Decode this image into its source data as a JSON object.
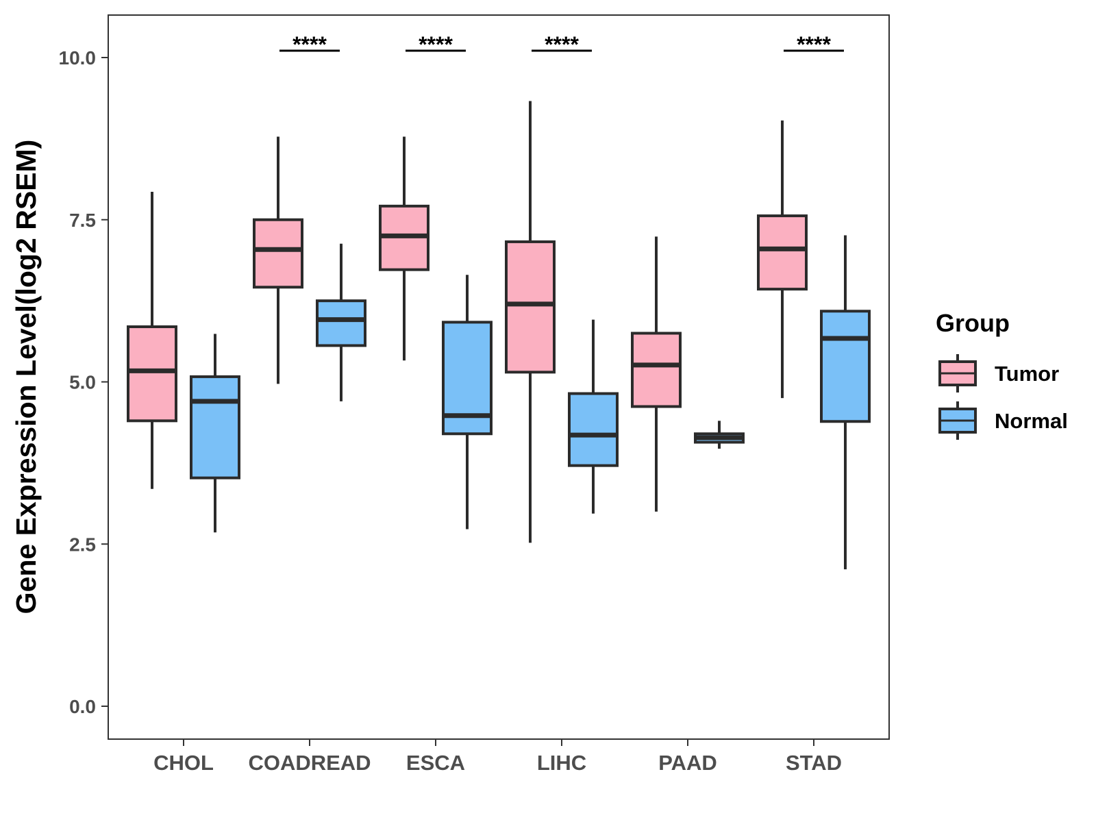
{
  "chart_data": {
    "type": "boxplot",
    "title": "",
    "xlabel": "",
    "ylabel": "Gene Expression Level(log2 RSEM)",
    "ylim": [
      -0.5,
      10.65
    ],
    "yticks": [
      0.0,
      2.5,
      5.0,
      7.5,
      10.0
    ],
    "ytick_labels": [
      "0.0",
      "2.5",
      "5.0",
      "7.5",
      "10.0"
    ],
    "categories": [
      "CHOL",
      "COADREAD",
      "ESCA",
      "LIHC",
      "PAAD",
      "STAD"
    ],
    "legend": {
      "title": "Group",
      "position": "right",
      "entries": [
        "Tumor",
        "Normal"
      ]
    },
    "colors": {
      "Tumor": "#fbb0c1",
      "Normal": "#7ac0f7",
      "outline": "#2b2b2b"
    },
    "series": [
      {
        "name": "Tumor",
        "boxes": [
          {
            "min": 3.35,
            "q1": 4.4,
            "median": 5.17,
            "q3": 5.85,
            "max": 7.93
          },
          {
            "min": 4.97,
            "q1": 6.46,
            "median": 7.04,
            "q3": 7.5,
            "max": 8.78
          },
          {
            "min": 5.33,
            "q1": 6.73,
            "median": 7.25,
            "q3": 7.71,
            "max": 8.78
          },
          {
            "min": 2.52,
            "q1": 5.15,
            "median": 6.2,
            "q3": 7.16,
            "max": 9.33
          },
          {
            "min": 3.0,
            "q1": 4.62,
            "median": 5.26,
            "q3": 5.75,
            "max": 7.24
          },
          {
            "min": 4.75,
            "q1": 6.43,
            "median": 7.05,
            "q3": 7.56,
            "max": 9.03
          }
        ]
      },
      {
        "name": "Normal",
        "boxes": [
          {
            "min": 2.68,
            "q1": 3.52,
            "median": 4.7,
            "q3": 5.08,
            "max": 5.74
          },
          {
            "min": 4.7,
            "q1": 5.56,
            "median": 5.96,
            "q3": 6.25,
            "max": 7.13
          },
          {
            "min": 2.73,
            "q1": 4.2,
            "median": 4.48,
            "q3": 5.92,
            "max": 6.65
          },
          {
            "min": 2.97,
            "q1": 3.71,
            "median": 4.18,
            "q3": 4.82,
            "max": 5.96
          },
          {
            "min": 3.97,
            "q1": 4.07,
            "median": 4.14,
            "q3": 4.2,
            "max": 4.4
          },
          {
            "min": 2.11,
            "q1": 4.39,
            "median": 5.67,
            "q3": 6.09,
            "max": 7.26
          }
        ]
      }
    ],
    "annotations": [
      {
        "category": "COADREAD",
        "label": "****"
      },
      {
        "category": "ESCA",
        "label": "****"
      },
      {
        "category": "LIHC",
        "label": "****"
      },
      {
        "category": "STAD",
        "label": "****"
      }
    ]
  }
}
